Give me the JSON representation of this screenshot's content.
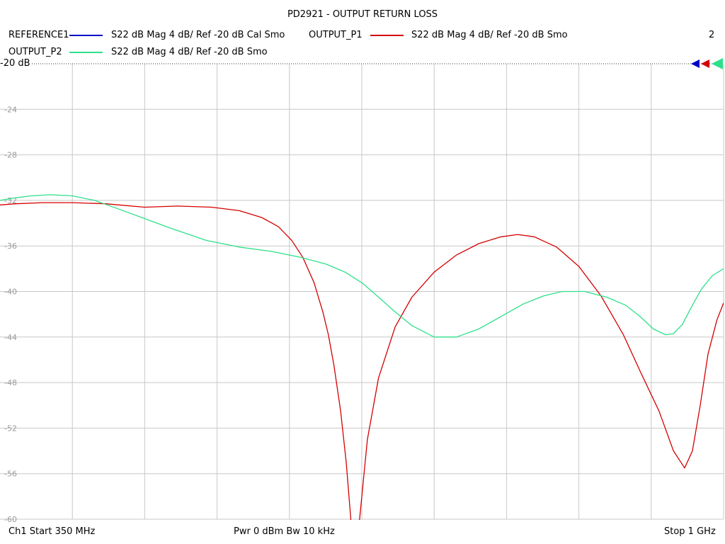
{
  "title": "PD2921 - OUTPUT RETURN LOSS",
  "legend": {
    "items": [
      {
        "name": "REFERENCE1",
        "desc": "S22  dB Mag  4 dB/ Ref -20 dB  Cal Smo",
        "color": "#0000c8"
      },
      {
        "name": "OUTPUT_P1",
        "desc": "S22  dB Mag  4 dB/ Ref -20 dB  Smo",
        "color": "#d40000"
      },
      {
        "name": "OUTPUT_P2",
        "desc": "S22  dB Mag  4 dB/ Ref -20 dB  Smo",
        "color": "#2ee08a"
      }
    ],
    "count": "2"
  },
  "ref_label": "-20 dB",
  "footer": {
    "start": "Ch1  Start  350 MHz",
    "power": "Pwr  0 dBm  Bw  10 kHz",
    "stop": "Stop  1 GHz"
  },
  "chart_data": {
    "type": "line",
    "title": "PD2921 - OUTPUT RETURN LOSS",
    "xlabel": "",
    "ylabel": "",
    "xlim": [
      350,
      1000
    ],
    "x_unit": "MHz",
    "ylim": [
      -60,
      -20
    ],
    "y_ticks": [
      -20,
      -24,
      -28,
      -32,
      -36,
      -40,
      -44,
      -48,
      -52,
      -56,
      -60
    ],
    "y_tick_labels": [
      "-20",
      "-24",
      "-28",
      "-32",
      "-36",
      "-40",
      "-44",
      "-48",
      "-52",
      "-56",
      "-60"
    ],
    "grid": true,
    "legend_position": "top",
    "series": [
      {
        "name": "OUTPUT_P1",
        "color": "#d40000",
        "x": [
          350,
          364,
          388,
          415,
          445,
          480,
          510,
          540,
          565,
          585,
          600,
          612,
          622,
          632,
          640,
          645,
          650,
          656,
          661,
          666,
          672,
          680,
          690,
          705,
          720,
          740,
          760,
          780,
          800,
          815,
          830,
          850,
          870,
          890,
          910,
          925,
          942,
          955,
          965,
          972,
          979,
          986,
          994,
          1000
        ],
        "y": [
          -32.4,
          -32.3,
          -32.2,
          -32.2,
          -32.3,
          -32.6,
          -32.5,
          -32.6,
          -32.9,
          -33.5,
          -34.3,
          -35.5,
          -37.0,
          -39.2,
          -41.8,
          -43.8,
          -46.5,
          -50.5,
          -55.0,
          -61.0,
          -61.0,
          -53.0,
          -47.6,
          -43.1,
          -40.5,
          -38.3,
          -36.8,
          -35.8,
          -35.2,
          -35.0,
          -35.2,
          -36.1,
          -37.8,
          -40.4,
          -43.8,
          -47.0,
          -50.5,
          -54.0,
          -55.5,
          -54.0,
          -50.0,
          -45.5,
          -42.5,
          -41.0
        ]
      },
      {
        "name": "OUTPUT_P2",
        "color": "#2ee08a",
        "x": [
          350,
          362,
          378,
          395,
          415,
          435,
          455,
          480,
          505,
          535,
          565,
          595,
          620,
          643,
          660,
          676,
          690,
          705,
          720,
          740,
          760,
          780,
          800,
          820,
          838,
          855,
          875,
          895,
          912,
          925,
          937,
          948,
          955,
          963,
          972,
          980,
          990,
          1000
        ],
        "y": [
          -32.0,
          -31.8,
          -31.6,
          -31.5,
          -31.6,
          -32.0,
          -32.7,
          -33.6,
          -34.5,
          -35.5,
          -36.1,
          -36.5,
          -37.0,
          -37.6,
          -38.3,
          -39.3,
          -40.5,
          -41.8,
          -43.0,
          -44.0,
          -44.0,
          -43.3,
          -42.2,
          -41.1,
          -40.4,
          -40.0,
          -40.0,
          -40.5,
          -41.2,
          -42.2,
          -43.3,
          -43.8,
          -43.7,
          -42.9,
          -41.2,
          -39.8,
          -38.6,
          -38.0
        ]
      },
      {
        "name": "REFERENCE1",
        "color": "#0000c8",
        "x": [],
        "y": []
      }
    ]
  }
}
